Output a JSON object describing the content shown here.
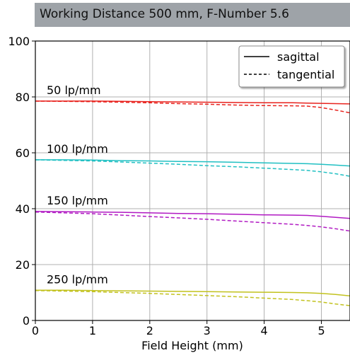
{
  "chart_data": {
    "type": "line",
    "title": "Working Distance 500 mm, F-Number 5.6",
    "xlabel": "Field Height (mm)",
    "ylabel": "",
    "xlim": [
      0,
      5.5
    ],
    "ylim": [
      0,
      100
    ],
    "xticks": [
      "0",
      "1",
      "2",
      "3",
      "4",
      "5"
    ],
    "yticks": [
      "0",
      "20",
      "40",
      "60",
      "80",
      "100"
    ],
    "grid": true,
    "legend": {
      "placement": "top-right",
      "entries": [
        {
          "label": "sagittal",
          "style": "solid"
        },
        {
          "label": "tangential",
          "style": "dashed"
        }
      ]
    },
    "x": [
      0,
      0.5,
      1,
      1.5,
      2,
      2.5,
      3,
      3.5,
      4,
      4.5,
      4.75,
      5,
      5.25,
      5.5
    ],
    "groups": [
      {
        "annotation": "50 lp/mm",
        "color": "#e8231e",
        "sagittal": [
          78.5,
          78.5,
          78.5,
          78.4,
          78.3,
          78.2,
          78.1,
          78.0,
          77.9,
          77.9,
          77.8,
          77.7,
          77.6,
          77.5
        ],
        "tangential": [
          78.5,
          78.4,
          78.3,
          78.1,
          77.9,
          77.6,
          77.4,
          77.1,
          76.9,
          76.8,
          76.7,
          76.2,
          75.3,
          74.3
        ]
      },
      {
        "annotation": "100 lp/mm",
        "color": "#21c0c3",
        "sagittal": [
          57.5,
          57.5,
          57.4,
          57.2,
          57.1,
          56.9,
          56.8,
          56.6,
          56.4,
          56.2,
          56.1,
          55.9,
          55.6,
          55.3
        ],
        "tangential": [
          57.5,
          57.3,
          57.1,
          56.7,
          56.3,
          55.9,
          55.4,
          55.0,
          54.5,
          54.0,
          53.7,
          53.2,
          52.5,
          51.6
        ]
      },
      {
        "annotation": "150 lp/mm",
        "color": "#b11ac3",
        "sagittal": [
          39.0,
          38.9,
          38.8,
          38.7,
          38.5,
          38.3,
          38.2,
          38.0,
          37.8,
          37.7,
          37.6,
          37.3,
          36.9,
          36.5
        ],
        "tangential": [
          38.8,
          38.5,
          38.2,
          37.7,
          37.2,
          36.7,
          36.2,
          35.6,
          35.0,
          34.4,
          34.0,
          33.5,
          32.8,
          32.0
        ]
      },
      {
        "annotation": "250 lp/mm",
        "color": "#c2c21e",
        "sagittal": [
          10.8,
          10.8,
          10.7,
          10.6,
          10.5,
          10.4,
          10.3,
          10.2,
          10.1,
          10.0,
          9.9,
          9.7,
          9.3,
          8.8
        ],
        "tangential": [
          10.7,
          10.5,
          10.3,
          10.0,
          9.7,
          9.3,
          8.9,
          8.5,
          8.0,
          7.5,
          7.1,
          6.6,
          5.9,
          5.3
        ]
      }
    ]
  }
}
